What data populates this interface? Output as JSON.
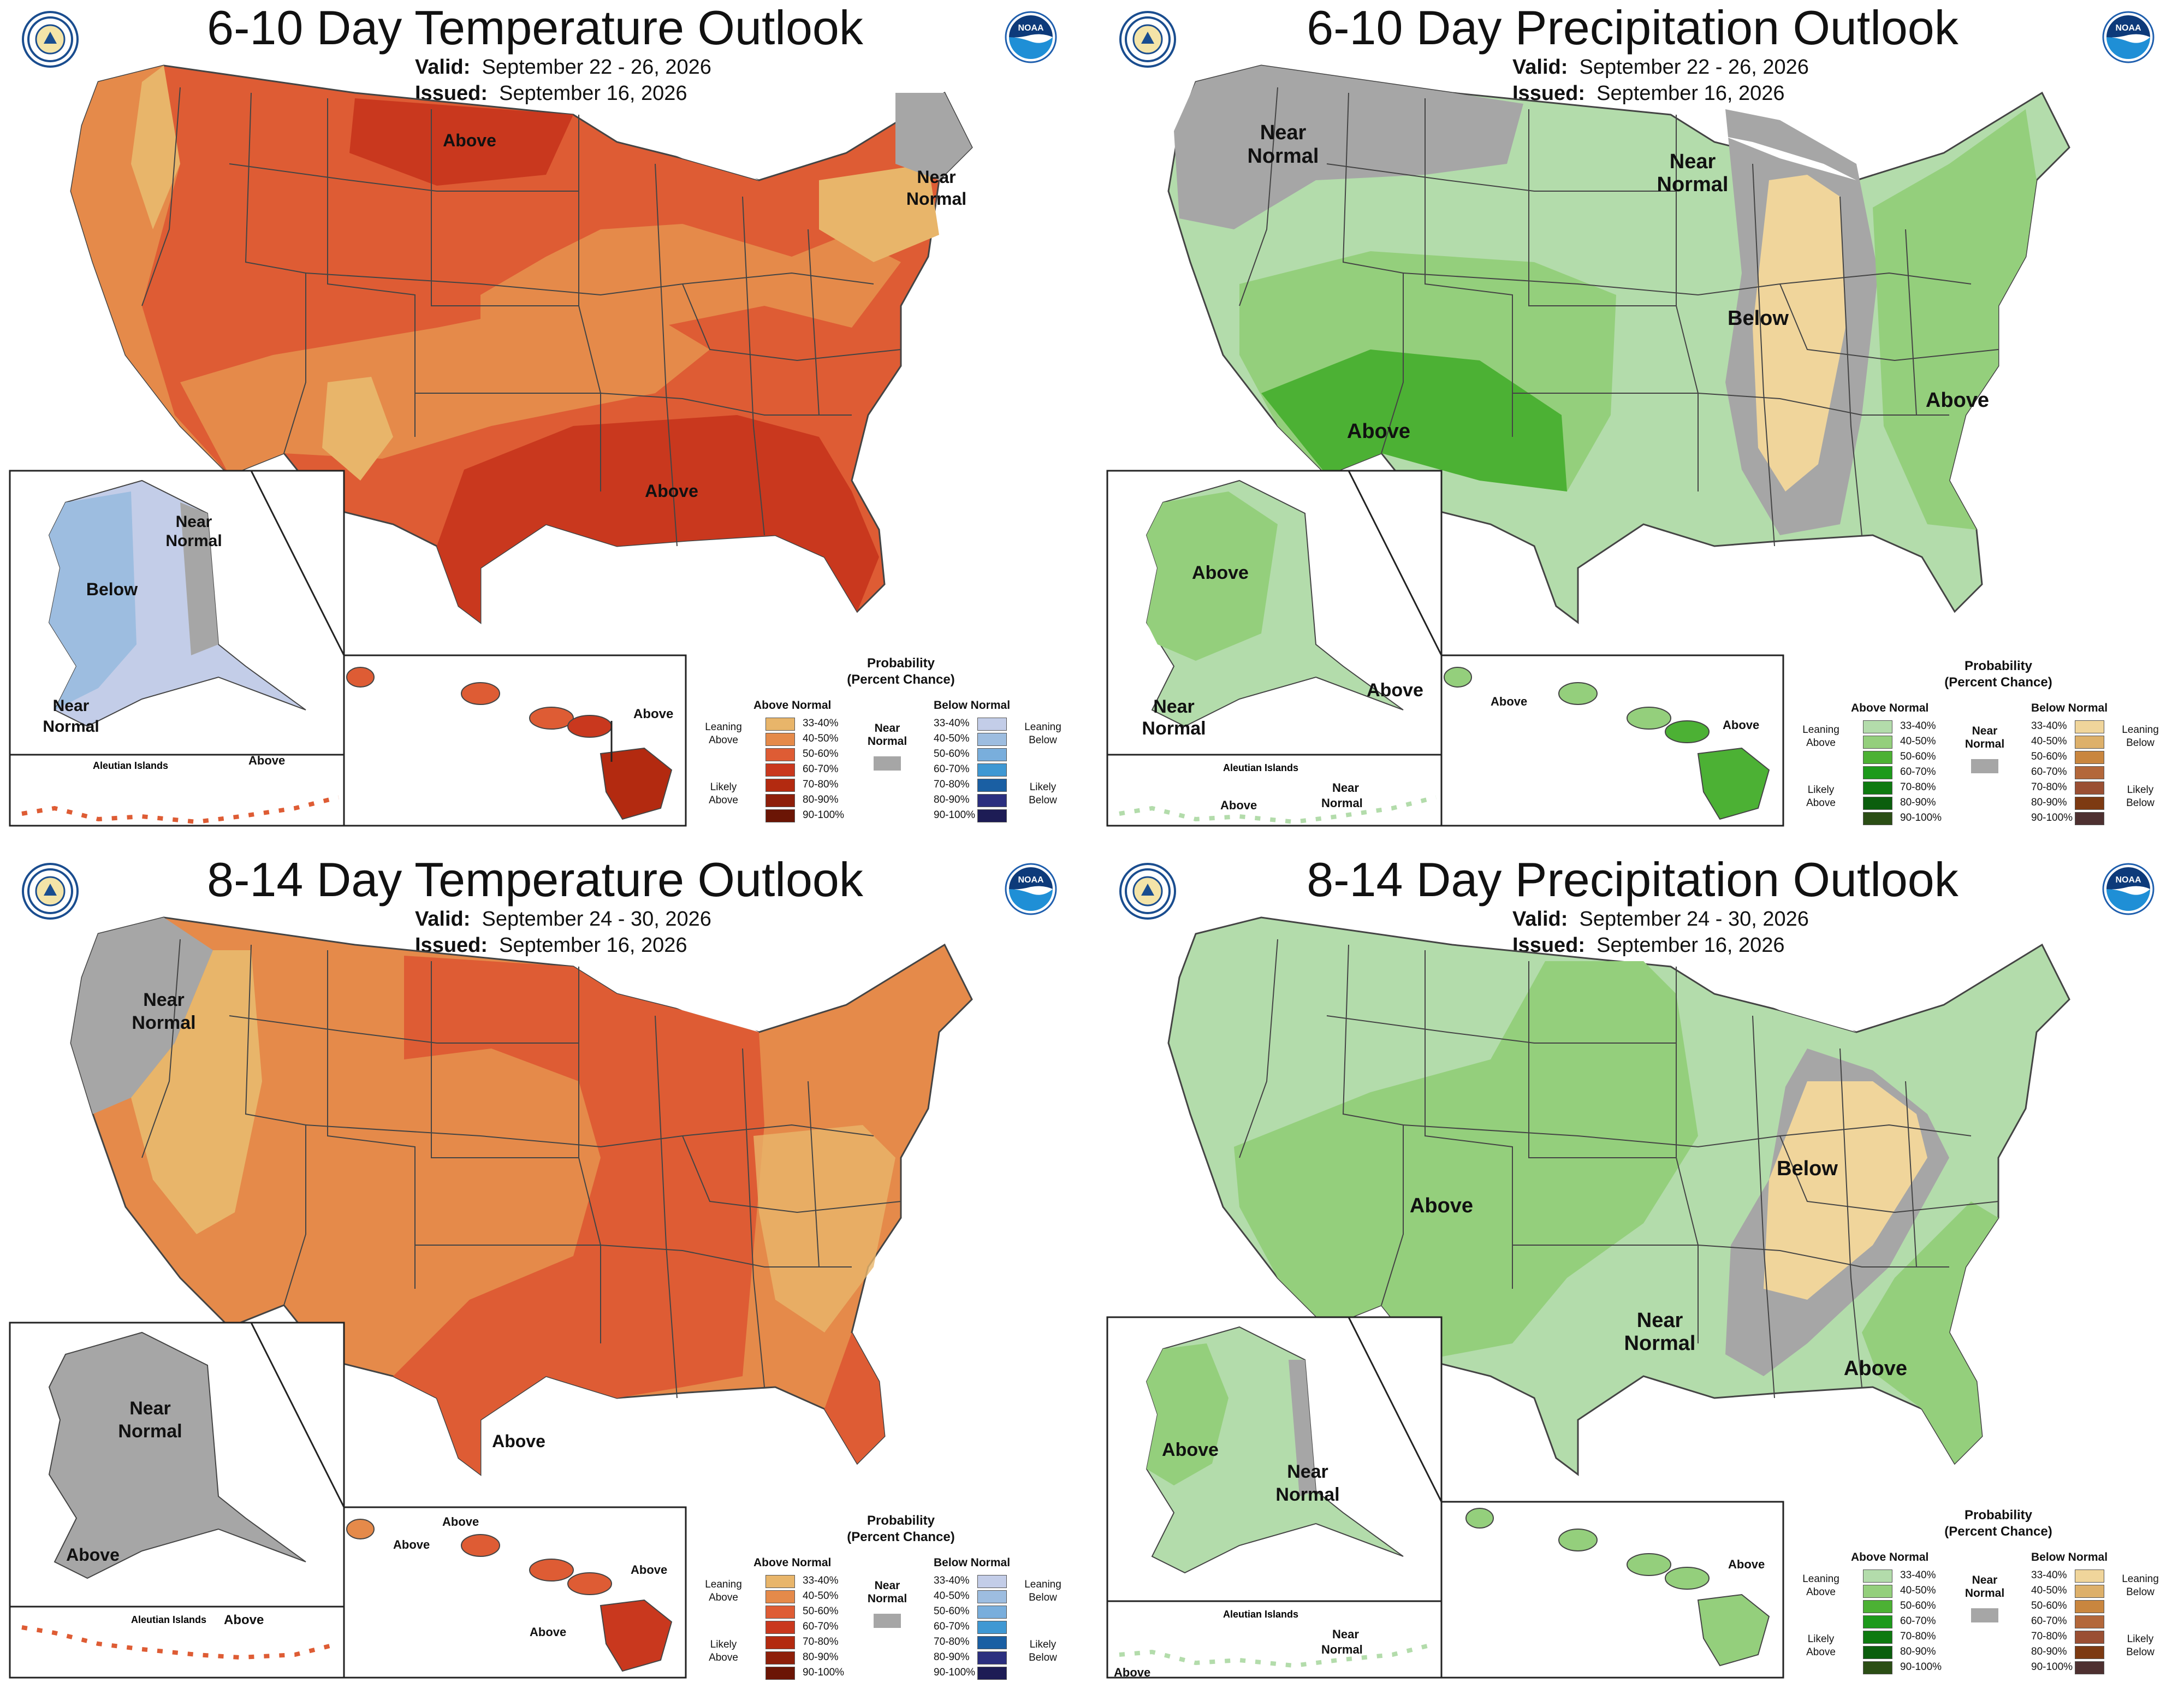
{
  "panels": {
    "temp610": {
      "title": "6-10 Day Temperature Outlook",
      "valid_label": "Valid:",
      "valid": "September 22 - 26, 2026",
      "issued_label": "Issued:",
      "issued": "September 16, 2026",
      "labels": {
        "a": "Above",
        "b": "Above",
        "c": "Near",
        "d": "Normal",
        "ak_near1": "Near",
        "ak_near2": "Normal",
        "ak_below": "Below",
        "ak_near3": "Near",
        "ak_near4": "Normal",
        "aleut": "Aleutian Islands",
        "aleut_above": "Above",
        "hi_above": "Above"
      }
    },
    "precip610": {
      "title": "6-10 Day Precipitation Outlook",
      "valid_label": "Valid:",
      "valid": "September 22 - 26, 2026",
      "issued_label": "Issued:",
      "issued": "September 16, 2026",
      "labels": {
        "near1": "Near",
        "near2": "Normal",
        "near3": "Near",
        "near4": "Normal",
        "below": "Below",
        "above1": "Above",
        "above2": "Above",
        "ak_above": "Above",
        "ak_above2": "Above",
        "ak_near1": "Near",
        "ak_near2": "Normal",
        "aleut": "Aleutian Islands",
        "aleut_above": "Above",
        "aleut_near1": "Near",
        "aleut_near2": "Normal",
        "hi_above1": "Above",
        "hi_above2": "Above"
      }
    },
    "temp814": {
      "title": "8-14 Day Temperature Outlook",
      "valid_label": "Valid:",
      "valid": "September 24 - 30, 2026",
      "issued_label": "Issued:",
      "issued": "September 16, 2026",
      "labels": {
        "near1": "Near",
        "near2": "Normal",
        "above": "Above",
        "ak_near1": "Near",
        "ak_near2": "Normal",
        "ak_above": "Above",
        "aleut": "Aleutian Islands",
        "aleut_above": "Above",
        "hi_above1": "Above",
        "hi_above2": "Above",
        "hi_above3": "Above",
        "hi_above4": "Above"
      }
    },
    "precip814": {
      "title": "8-14 Day Precipitation Outlook",
      "valid_label": "Valid:",
      "valid": "September 24 - 30, 2026",
      "issued_label": "Issued:",
      "issued": "September 16, 2026",
      "labels": {
        "above1": "Above",
        "below": "Below",
        "near1": "Near",
        "near2": "Normal",
        "above2": "Above",
        "ak_above": "Above",
        "ak_near1": "Near",
        "ak_near2": "Normal",
        "aleut": "Aleutian Islands",
        "aleut_above": "Above",
        "aleut_near1": "Near",
        "aleut_near2": "Normal",
        "hi_above": "Above"
      }
    }
  },
  "legend": {
    "title_line1": "Probability",
    "title_line2": "(Percent Chance)",
    "above_normal": "Above Normal",
    "below_normal": "Below Normal",
    "near_line1": "Near",
    "near_line2": "Normal",
    "leaning_above_1": "Leaning",
    "leaning_above_2": "Above",
    "likely_above_1": "Likely",
    "likely_above_2": "Above",
    "leaning_below_1": "Leaning",
    "leaning_below_2": "Below",
    "likely_below_1": "Likely",
    "likely_below_2": "Below",
    "ranges": [
      "33-40%",
      "40-50%",
      "50-60%",
      "60-70%",
      "70-80%",
      "80-90%",
      "90-100%"
    ]
  },
  "colors": {
    "temp_above": [
      "#e8b56a",
      "#e58a4a",
      "#de5c34",
      "#c9381e",
      "#b32a10",
      "#8e1f0a",
      "#6b1505"
    ],
    "temp_below": [
      "#c3cde8",
      "#9dbde0",
      "#79aedc",
      "#3f98d3",
      "#1a5fa3",
      "#2b2f7f",
      "#1d1c55"
    ],
    "precip_above": [
      "#b3dcab",
      "#94cf7c",
      "#4cb134",
      "#1d9a1b",
      "#0e7a10",
      "#0b5e0d",
      "#2b4e15"
    ],
    "precip_below": [
      "#f0d59b",
      "#ddb06a",
      "#c9863f",
      "#b3673a",
      "#9a4f33",
      "#7d3a12",
      "#4e3030"
    ],
    "near_normal": "#a6a6a6",
    "land_outline": "#444444"
  }
}
